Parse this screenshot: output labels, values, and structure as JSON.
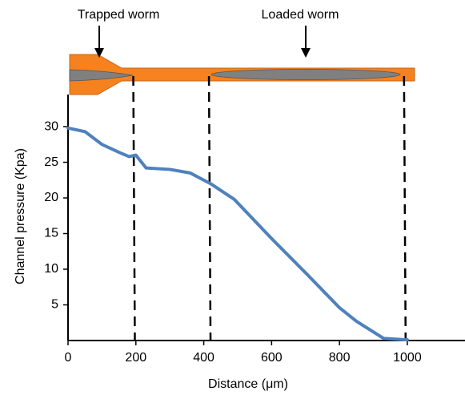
{
  "chart_data": {
    "type": "line",
    "annotations": [
      "Trapped worm",
      "Loaded worm"
    ],
    "x_label": "Distance (μm)",
    "y_label": "Channel pressure (Kpa)",
    "x": [
      0,
      50,
      100,
      150,
      180,
      200,
      230,
      300,
      360,
      420,
      490,
      600,
      700,
      800,
      850,
      930,
      1000
    ],
    "series": [
      {
        "color": "#4f81bd",
        "values": [
          29.8,
          29.3,
          27.5,
          26.4,
          25.8,
          26.0,
          24.2,
          24.0,
          23.5,
          22.0,
          19.8,
          14.3,
          9.5,
          4.6,
          2.7,
          0.3,
          0.1
        ]
      }
    ],
    "reference_lines": [
      197,
      420,
      995
    ],
    "xlim": [
      0,
      1170
    ],
    "xticks": [
      0,
      200,
      400,
      600,
      800,
      1000
    ],
    "ylim": [
      0,
      34.5
    ],
    "yticks": [
      5,
      10,
      15,
      20,
      25,
      30
    ]
  }
}
